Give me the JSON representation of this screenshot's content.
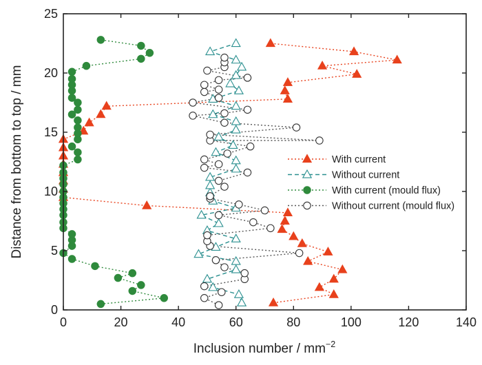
{
  "chart_data": {
    "type": "scatter",
    "title": "",
    "xlabel": "Inclusion number / mm",
    "xlabel_sup": "−2",
    "ylabel": "Distance from bottom to top / mm",
    "xlim": [
      0,
      140
    ],
    "ylim": [
      0,
      25
    ],
    "xticks": [
      0,
      20,
      40,
      60,
      80,
      100,
      120,
      140
    ],
    "yticks": [
      0,
      5,
      10,
      15,
      20,
      25
    ],
    "grid": false,
    "legend_position": "right",
    "series": [
      {
        "name": "With current",
        "marker": "triangle",
        "filled": true,
        "line": "dotted",
        "color": "#e8411c",
        "points": [
          [
            73,
            0.6
          ],
          [
            94,
            1.3
          ],
          [
            89,
            1.9
          ],
          [
            94,
            2.6
          ],
          [
            97,
            3.4
          ],
          [
            85,
            4.1
          ],
          [
            92,
            4.9
          ],
          [
            83,
            5.6
          ],
          [
            80,
            6.2
          ],
          [
            76,
            6.8
          ],
          [
            77,
            7.5
          ],
          [
            78,
            8.2
          ],
          [
            29,
            8.8
          ],
          [
            0,
            9.5
          ],
          [
            0,
            10.2
          ],
          [
            0,
            10.9
          ],
          [
            0,
            11.6
          ],
          [
            0,
            12.3
          ],
          [
            0,
            13.0
          ],
          [
            0,
            13.7
          ],
          [
            0,
            14.4
          ],
          [
            7,
            15.1
          ],
          [
            9,
            15.8
          ],
          [
            13,
            16.5
          ],
          [
            15,
            17.2
          ],
          [
            78,
            17.8
          ],
          [
            77,
            18.5
          ],
          [
            78,
            19.2
          ],
          [
            102,
            19.9
          ],
          [
            90,
            20.6
          ],
          [
            116,
            21.1
          ],
          [
            101,
            21.8
          ],
          [
            72,
            22.5
          ]
        ]
      },
      {
        "name": "Without current",
        "marker": "triangle",
        "filled": false,
        "line": "dashed",
        "color": "#2a8f8f",
        "points": [
          [
            62,
            0.6
          ],
          [
            61,
            1.3
          ],
          [
            52,
            1.9
          ],
          [
            50,
            2.6
          ],
          [
            60,
            3.4
          ],
          [
            60,
            4.1
          ],
          [
            47,
            4.7
          ],
          [
            53,
            5.3
          ],
          [
            60,
            6.0
          ],
          [
            50,
            6.7
          ],
          [
            54,
            7.3
          ],
          [
            48,
            8.0
          ],
          [
            60,
            8.6
          ],
          [
            52,
            9.2
          ],
          [
            51,
            9.9
          ],
          [
            51,
            10.5
          ],
          [
            51,
            11.2
          ],
          [
            60,
            11.9
          ],
          [
            60,
            12.6
          ],
          [
            53,
            13.3
          ],
          [
            59,
            13.9
          ],
          [
            54,
            14.6
          ],
          [
            60,
            15.2
          ],
          [
            60,
            15.9
          ],
          [
            52,
            16.5
          ],
          [
            60,
            17.2
          ],
          [
            52,
            17.8
          ],
          [
            61,
            18.5
          ],
          [
            58,
            19.1
          ],
          [
            60,
            19.8
          ],
          [
            62,
            20.5
          ],
          [
            60,
            21.1
          ],
          [
            51,
            21.8
          ],
          [
            60,
            22.5
          ]
        ]
      },
      {
        "name": "With current (mould flux)",
        "marker": "circle",
        "filled": true,
        "line": "dotted",
        "color": "#2f8a3c",
        "points": [
          [
            13,
            0.5
          ],
          [
            35,
            1.0
          ],
          [
            24,
            1.6
          ],
          [
            27,
            2.1
          ],
          [
            19,
            2.7
          ],
          [
            24,
            3.1
          ],
          [
            11,
            3.7
          ],
          [
            3,
            4.3
          ],
          [
            0,
            4.8
          ],
          [
            3,
            5.4
          ],
          [
            3,
            5.9
          ],
          [
            3,
            6.4
          ],
          [
            0,
            6.9
          ],
          [
            0,
            7.4
          ],
          [
            0,
            8.0
          ],
          [
            0,
            8.5
          ],
          [
            0,
            9.0
          ],
          [
            0,
            9.5
          ],
          [
            0,
            10.0
          ],
          [
            0,
            10.6
          ],
          [
            0,
            11.1
          ],
          [
            0,
            11.6
          ],
          [
            0,
            12.2
          ],
          [
            5,
            12.7
          ],
          [
            5,
            13.3
          ],
          [
            3,
            13.8
          ],
          [
            5,
            14.4
          ],
          [
            5,
            14.9
          ],
          [
            5,
            15.4
          ],
          [
            5,
            16.0
          ],
          [
            3,
            16.5
          ],
          [
            5,
            16.9
          ],
          [
            5,
            17.5
          ],
          [
            3,
            17.9
          ],
          [
            3,
            18.5
          ],
          [
            3,
            19.0
          ],
          [
            3,
            19.5
          ],
          [
            3,
            20.1
          ],
          [
            8,
            20.6
          ],
          [
            27,
            21.2
          ],
          [
            30,
            21.7
          ],
          [
            27,
            22.3
          ],
          [
            13,
            22.8
          ]
        ]
      },
      {
        "name": "Without current (mould flux)",
        "marker": "circle",
        "filled": false,
        "line": "dotted",
        "color": "#555555",
        "points": [
          [
            54,
            0.4
          ],
          [
            49,
            1.0
          ],
          [
            55,
            1.5
          ],
          [
            49,
            2.0
          ],
          [
            63,
            2.6
          ],
          [
            63,
            3.1
          ],
          [
            56,
            3.6
          ],
          [
            53,
            4.2
          ],
          [
            82,
            4.8
          ],
          [
            51,
            5.4
          ],
          [
            50,
            5.8
          ],
          [
            50,
            6.3
          ],
          [
            72,
            6.9
          ],
          [
            66,
            7.4
          ],
          [
            54,
            8.0
          ],
          [
            70,
            8.4
          ],
          [
            61,
            8.9
          ],
          [
            51,
            9.4
          ],
          [
            51,
            9.6
          ],
          [
            56,
            10.4
          ],
          [
            54,
            10.9
          ],
          [
            64,
            11.6
          ],
          [
            49,
            12.0
          ],
          [
            54,
            12.3
          ],
          [
            49,
            12.7
          ],
          [
            57,
            13.2
          ],
          [
            65,
            13.8
          ],
          [
            51,
            14.3
          ],
          [
            89,
            14.3
          ],
          [
            51,
            14.8
          ],
          [
            81,
            15.4
          ],
          [
            56,
            15.8
          ],
          [
            45,
            16.4
          ],
          [
            56,
            16.6
          ],
          [
            64,
            16.9
          ],
          [
            45,
            17.5
          ],
          [
            54,
            17.9
          ],
          [
            49,
            18.4
          ],
          [
            54,
            18.6
          ],
          [
            49,
            19.0
          ],
          [
            54,
            19.4
          ],
          [
            64,
            19.6
          ],
          [
            50,
            20.2
          ],
          [
            56,
            20.5
          ],
          [
            56,
            20.9
          ],
          [
            56,
            21.3
          ]
        ]
      }
    ]
  }
}
